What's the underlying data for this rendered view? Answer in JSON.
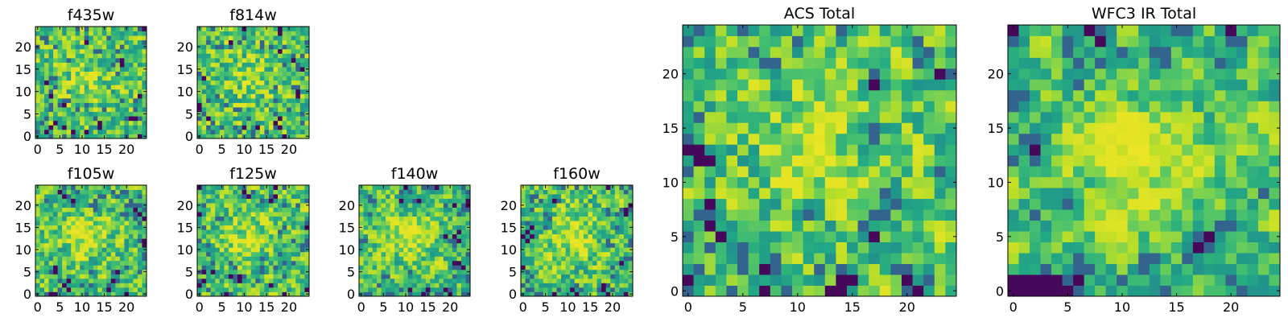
{
  "chart_data": [
    {
      "type": "heatmap",
      "title": "f435w",
      "xticks": [
        0,
        5,
        10,
        15,
        20
      ],
      "yticks": [
        0,
        5,
        10,
        15,
        20
      ],
      "grid_size": 25,
      "colormap": "viridis",
      "seed": 11,
      "smooth": 0
    },
    {
      "type": "heatmap",
      "title": "f814w",
      "xticks": [
        0,
        5,
        10,
        15,
        20
      ],
      "yticks": [
        0,
        5,
        10,
        15,
        20
      ],
      "grid_size": 25,
      "colormap": "viridis",
      "seed": 23,
      "smooth": 0
    },
    {
      "type": "heatmap",
      "title": "f105w",
      "xticks": [
        0,
        5,
        10,
        15,
        20
      ],
      "yticks": [
        0,
        5,
        10,
        15,
        20
      ],
      "grid_size": 25,
      "colormap": "viridis",
      "seed": 37,
      "smooth": 1
    },
    {
      "type": "heatmap",
      "title": "f125w",
      "xticks": [
        0,
        5,
        10,
        15,
        20
      ],
      "yticks": [
        0,
        5,
        10,
        15,
        20
      ],
      "grid_size": 25,
      "colormap": "viridis",
      "seed": 41,
      "smooth": 1
    },
    {
      "type": "heatmap",
      "title": "f140w",
      "xticks": [
        0,
        5,
        10,
        15,
        20
      ],
      "yticks": [
        0,
        5,
        10,
        15,
        20
      ],
      "grid_size": 25,
      "colormap": "viridis",
      "seed": 53,
      "smooth": 1
    },
    {
      "type": "heatmap",
      "title": "f160w",
      "xticks": [
        0,
        5,
        10,
        15,
        20
      ],
      "yticks": [
        0,
        5,
        10,
        15,
        20
      ],
      "grid_size": 25,
      "colormap": "viridis",
      "seed": 67,
      "smooth": 1
    },
    {
      "type": "heatmap",
      "title": "ACS Total",
      "xticks": [
        0,
        5,
        10,
        15,
        20
      ],
      "yticks": [
        0,
        5,
        10,
        15,
        20
      ],
      "grid_size": 25,
      "colormap": "viridis",
      "seed": 79,
      "smooth": 1
    },
    {
      "type": "heatmap",
      "title": "WFC3 IR Total",
      "xticks": [
        0,
        5,
        10,
        15,
        20
      ],
      "yticks": [
        0,
        5,
        10,
        15,
        20
      ],
      "grid_size": 25,
      "colormap": "viridis",
      "seed": 97,
      "smooth": 2
    }
  ]
}
